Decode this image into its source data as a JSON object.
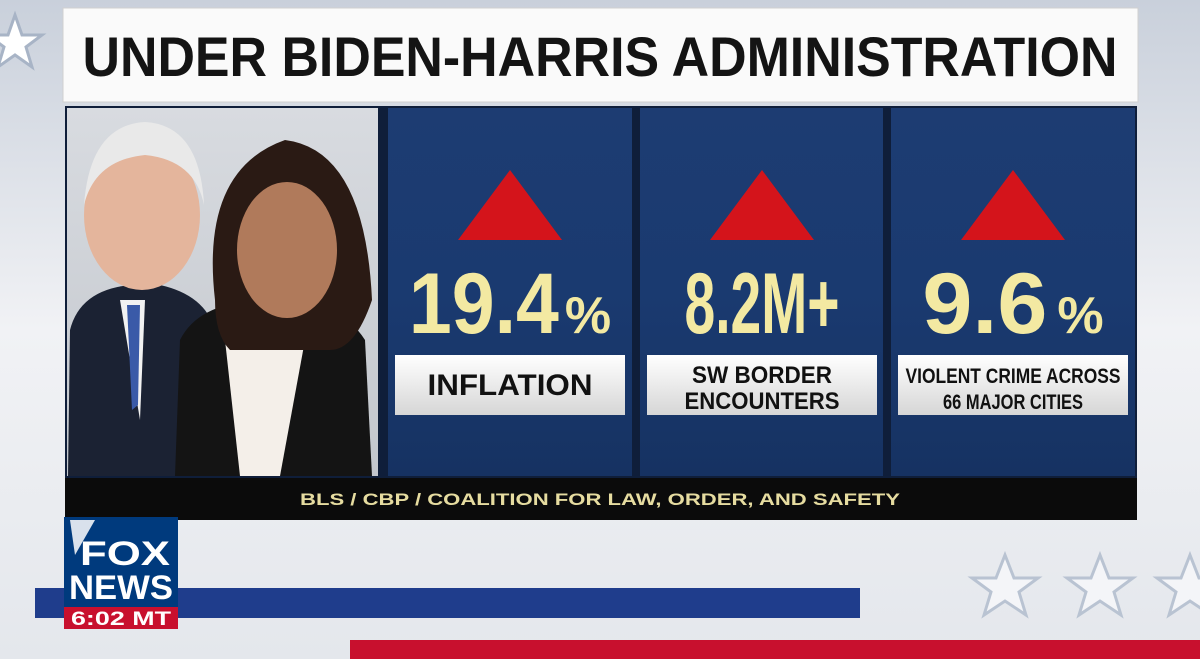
{
  "header": {
    "title": "UNDER BIDEN-HARRIS ADMINISTRATION"
  },
  "stats": [
    {
      "figure": "19.4",
      "suffix": "%",
      "label": [
        "INFLATION"
      ]
    },
    {
      "figure": "8.2M+",
      "label": [
        "SW BORDER",
        "ENCOUNTERS"
      ]
    },
    {
      "figure": "9.6",
      "suffix": "%",
      "label": [
        "VIOLENT CRIME ACROSS",
        "66 MAJOR CITIES"
      ]
    }
  ],
  "source": "BLS / CBP / COALITION FOR LAW, ORDER, AND SAFETY",
  "logo": {
    "line1": "FOX",
    "line2": "NEWS",
    "time": "6:02 MT"
  }
}
